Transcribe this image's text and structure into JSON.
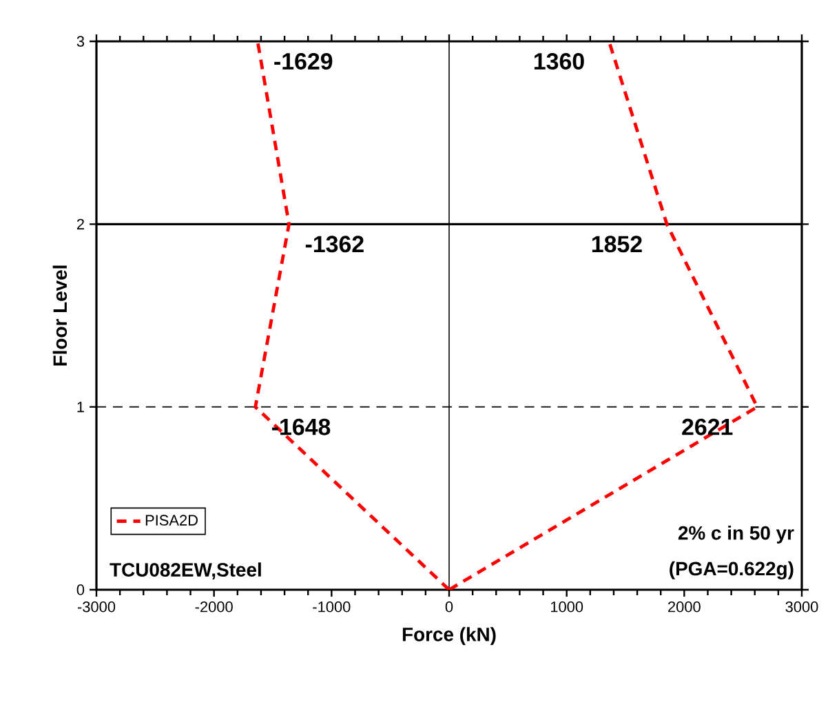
{
  "chart_data": {
    "type": "line",
    "xlabel": "Force (kN)",
    "ylabel": "Floor Level",
    "series": [
      {
        "name": "PISA2D",
        "color": "#ff0000",
        "x": [
          0,
          -1648,
          -1362,
          -1629
        ],
        "values": [
          0,
          1,
          2,
          3
        ]
      },
      {
        "color": "#ff0000",
        "x": [
          0,
          2621,
          1852,
          1360
        ],
        "values": [
          0,
          1,
          2,
          3
        ]
      }
    ],
    "xlim": [
      -3000,
      3000
    ],
    "xticks": [
      -3000,
      -2000,
      -1000,
      0,
      1000,
      2000,
      3000
    ],
    "ylim": [
      0,
      3
    ],
    "yticks": [
      0,
      1,
      2,
      3
    ],
    "ref_lines": [
      {
        "axis": "y",
        "value": 1,
        "color": "#000000",
        "line_style": "dashed"
      },
      {
        "axis": "y",
        "value": 2,
        "color": "#000000",
        "line_style": "solid"
      },
      {
        "axis": "x",
        "value": 0,
        "color": "#000000",
        "line_style": "solid"
      }
    ],
    "annotations": [
      "TCU082EW,Steel",
      "2% c in 50 yr",
      "(PGA=0.622g)",
      {
        "text": "-1648",
        "x": -1648,
        "y": 1
      },
      {
        "text": "-1362",
        "x": -1362,
        "y": 2
      },
      {
        "text": "-1629",
        "x": -1629,
        "y": 3
      },
      {
        "text": "2621",
        "x": 2621,
        "y": 1
      },
      {
        "text": "1852",
        "x": 1852,
        "y": 2
      },
      {
        "text": "1360",
        "x": 1360,
        "y": 3
      }
    ],
    "legend": "bottom left",
    "grid": false,
    "marker": "none",
    "line_style": "dashed"
  }
}
